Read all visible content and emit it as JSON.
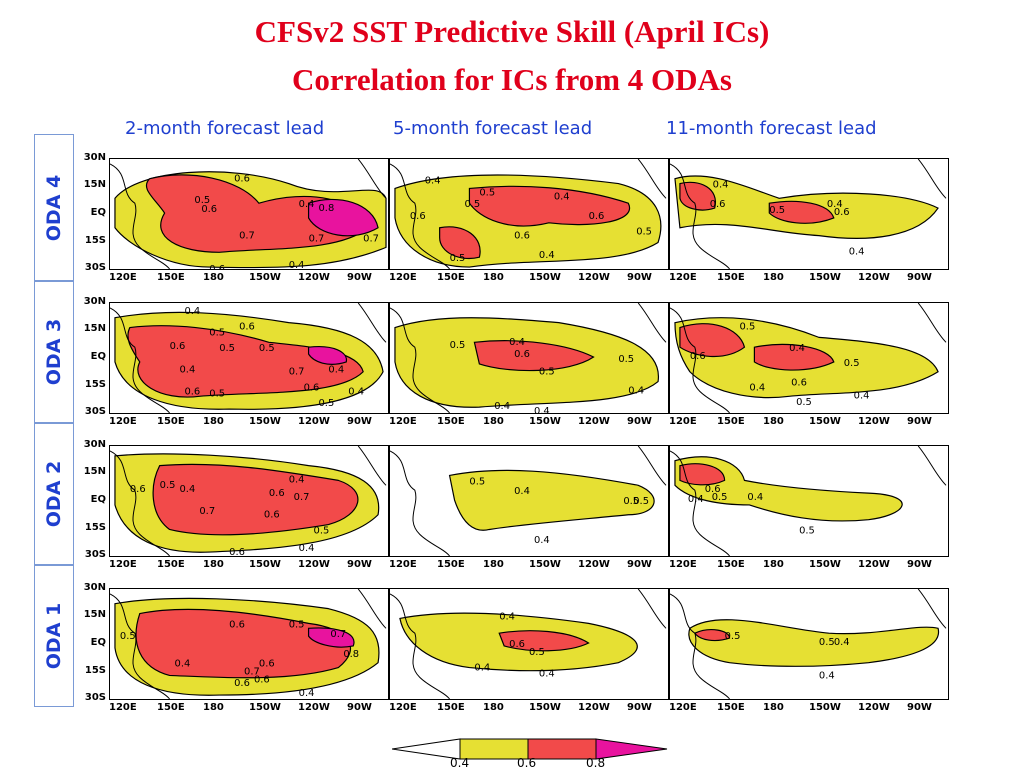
{
  "title": {
    "line1": "CFSv2 SST Predictive Skill (April ICs)",
    "line2": "Correlation for ICs from 4 ODAs"
  },
  "columns": [
    "2-month forecast lead",
    "5-month forecast lead",
    "11-month forecast lead"
  ],
  "rows": [
    "ODA 4",
    "ODA 3",
    "ODA 2",
    "ODA 1"
  ],
  "lat_ticks": [
    "30N",
    "15N",
    "EQ",
    "15S",
    "30S"
  ],
  "lon_ticks": [
    "120E",
    "150E",
    "180",
    "150W",
    "120W",
    "90W"
  ],
  "colors": {
    "level_0_4": "#e6e033",
    "level_0_6": "#f24a4a",
    "level_0_8": "#e8139e",
    "title": "#e0001b",
    "labels": "#1f3fcf"
  },
  "colorbar": {
    "ticks": [
      "0.4",
      "0.6",
      "0.8"
    ],
    "colors": [
      "#ffffff",
      "#e6e033",
      "#f24a4a",
      "#e8139e"
    ]
  },
  "panels": [
    {
      "row": "ODA 4",
      "col": 1,
      "labels": [
        "0.6",
        "0.5",
        "0.6",
        "0.7",
        "0.4",
        "0.8",
        "0.7",
        "0.7",
        "0.4",
        "0.6"
      ]
    },
    {
      "row": "ODA 4",
      "col": 2,
      "labels": [
        "0.4",
        "0.5",
        "0.4",
        "0.5",
        "0.6",
        "0.6",
        "0.6",
        "0.5",
        "0.4",
        "0.5"
      ]
    },
    {
      "row": "ODA 4",
      "col": 3,
      "labels": [
        "0.4",
        "0.6",
        "0.5",
        "0.4",
        "0.6",
        "0.4"
      ]
    },
    {
      "row": "ODA 3",
      "col": 1,
      "labels": [
        "0.4",
        "0.5",
        "0.6",
        "0.6",
        "0.5",
        "0.5",
        "0.4",
        "0.7",
        "0.4",
        "0.6",
        "0.6",
        "0.5",
        "0.4",
        "0.5"
      ]
    },
    {
      "row": "ODA 3",
      "col": 2,
      "labels": [
        "0.5",
        "0.4",
        "0.6",
        "0.5",
        "0.5",
        "0.4",
        "0.4",
        "0.4"
      ]
    },
    {
      "row": "ODA 3",
      "col": 3,
      "labels": [
        "0.5",
        "0.6",
        "0.4",
        "0.5",
        "0.4",
        "0.6",
        "0.5",
        "0.4"
      ]
    },
    {
      "row": "ODA 2",
      "col": 1,
      "labels": [
        "0.4",
        "0.6",
        "0.5",
        "0.4",
        "0.6",
        "0.7",
        "0.7",
        "0.6",
        "0.5",
        "0.4",
        "0.6"
      ]
    },
    {
      "row": "ODA 2",
      "col": 2,
      "labels": [
        "0.5",
        "0.4",
        "0.5",
        "0.5",
        "0.4"
      ]
    },
    {
      "row": "ODA 2",
      "col": 3,
      "labels": [
        "0.6",
        "0.4",
        "0.5",
        "0.4",
        "0.5"
      ]
    },
    {
      "row": "ODA 1",
      "col": 1,
      "labels": [
        "0.5",
        "0.6",
        "0.5",
        "0.4",
        "0.7",
        "0.6",
        "0.6",
        "0.8",
        "0.7",
        "0.6",
        "0.4",
        "0.5"
      ]
    },
    {
      "row": "ODA 1",
      "col": 2,
      "labels": [
        "0.4",
        "0.6",
        "0.5",
        "0.4",
        "0.4"
      ]
    },
    {
      "row": "ODA 1",
      "col": 3,
      "labels": [
        "0.5",
        "0.5",
        "0.4",
        "0.4"
      ]
    }
  ]
}
